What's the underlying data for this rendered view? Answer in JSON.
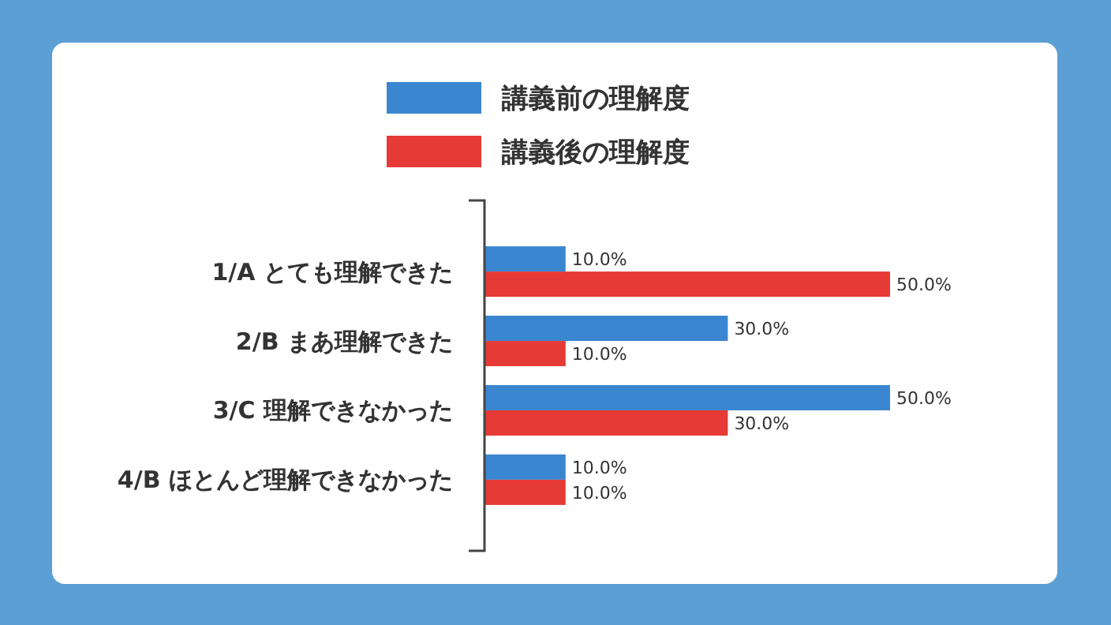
{
  "chart_data": {
    "type": "bar",
    "orientation": "horizontal",
    "categories": [
      "1/A とても理解できた",
      "2/B まあ理解できた",
      "3/C 理解できなかった",
      "4/B ほとんど理解できなかった"
    ],
    "series": [
      {
        "name": "講義前の理解度",
        "color": "#3a86d0",
        "values": [
          10,
          30,
          50,
          10
        ],
        "value_labels": [
          "10.0%",
          "30.0%",
          "50.0%",
          "10.0%"
        ]
      },
      {
        "name": "講義後の理解度",
        "color": "#e53a35",
        "values": [
          50,
          10,
          30,
          10
        ],
        "value_labels": [
          "50.0%",
          "10.0%",
          "30.0%",
          "10.0%"
        ]
      }
    ],
    "legend": "top",
    "grid": false
  }
}
